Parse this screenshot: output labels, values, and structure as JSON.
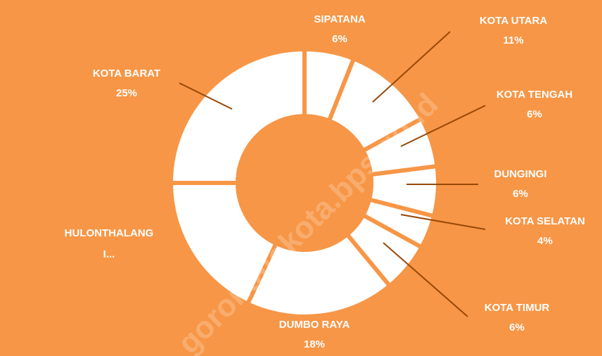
{
  "chart_data": {
    "type": "donut",
    "categories": [
      "SIPATANA",
      "KOTA UTARA",
      "KOTA TENGAH",
      "DUNGINGI",
      "KOTA SELATAN",
      "KOTA TIMUR",
      "DUMBO RAYA",
      "HULONTHALANGI...",
      "KOTA BARAT"
    ],
    "values": [
      6,
      11,
      6,
      6,
      4,
      6,
      18,
      18,
      25
    ],
    "value_labels": [
      "6%",
      "11%",
      "6%",
      "6%",
      "4%",
      "6%",
      "18%",
      null,
      "25%"
    ],
    "color": "#ffffff",
    "background": "#f79646",
    "leader_color": "#984807",
    "watermark": "gorontalokota.bps.go.id"
  }
}
